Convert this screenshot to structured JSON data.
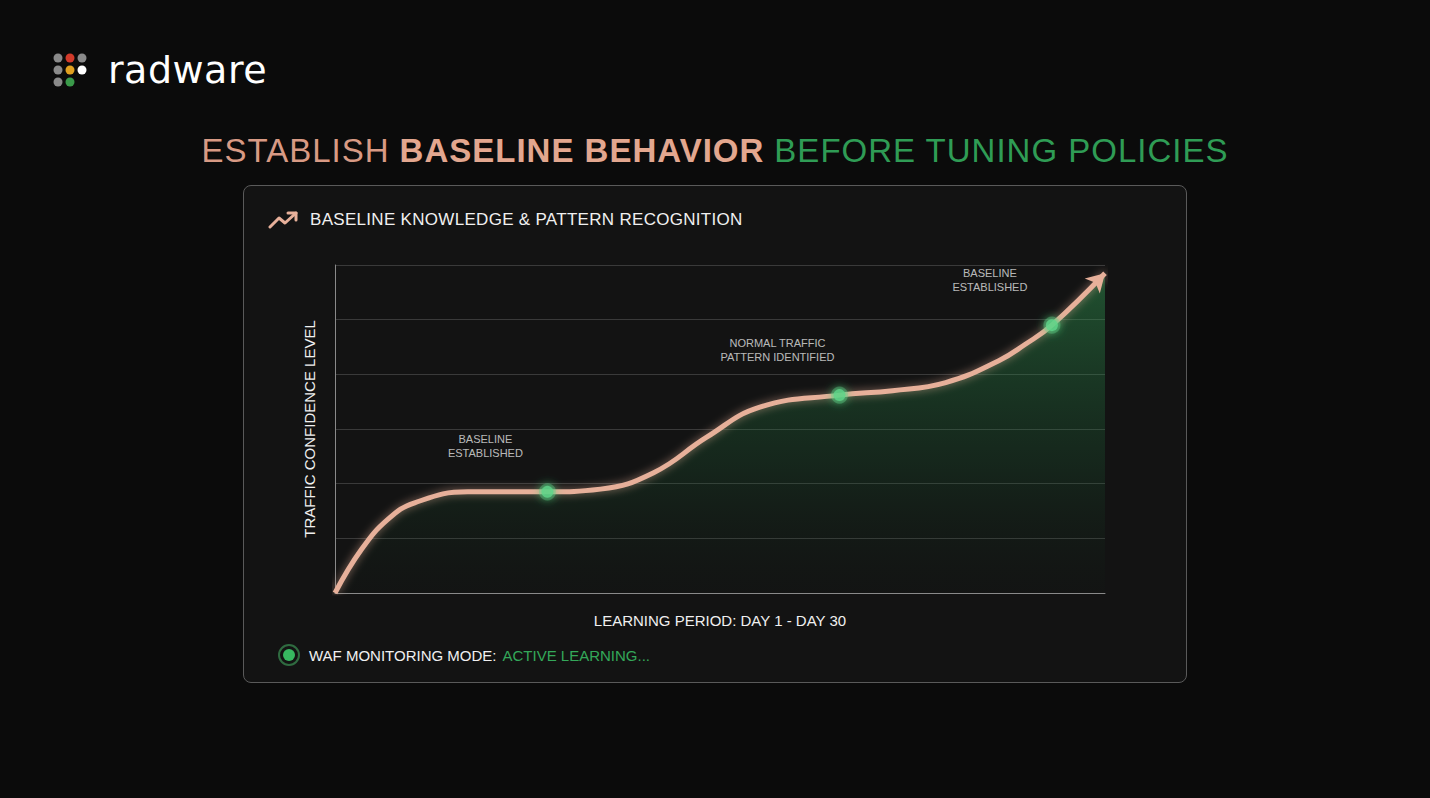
{
  "logo": "radware",
  "headline": [
    "ESTABLISH",
    "BASELINE BEHAVIOR",
    "BEFORE TUNING POLICIES"
  ],
  "status": {
    "label": "WAF MONITORING MODE:",
    "value": "ACTIVE LEARNING..."
  },
  "chart_data": {
    "type": "area",
    "title": "BASELINE KNOWLEDGE & PATTERN RECOGNITION",
    "x_label": "LEARNING PERIOD: DAY 1 - DAY 30",
    "y_label": "TRAFFIC CONFIDENCE LEVEL",
    "x": [
      1,
      2,
      3,
      4,
      6,
      9,
      11,
      13,
      15,
      17,
      20,
      22,
      24,
      26,
      27,
      28,
      30
    ],
    "values": [
      0,
      0.8,
      1.35,
      1.65,
      1.85,
      1.85,
      1.9,
      2.2,
      2.85,
      3.4,
      3.62,
      3.7,
      3.85,
      4.25,
      4.55,
      4.9,
      5.85
    ],
    "color": "#e7b09a",
    "marker": "arrow",
    "xlim": [
      1,
      30
    ],
    "ylim": [
      0,
      6
    ],
    "yticks": [
      0,
      1,
      2,
      3,
      4,
      5,
      6
    ],
    "grid": true,
    "tick_labels": false,
    "annotations": [
      {
        "x": 9,
        "y": 1.85,
        "text": "BASELINE\nESTABLISHED"
      },
      {
        "x": 20,
        "y": 3.62,
        "text": "NORMAL TRAFFIC\nPATTERN IDENTIFIED"
      },
      {
        "x": 28,
        "y": 4.9,
        "text": "BASELINE\nESTABLISHED"
      }
    ]
  }
}
